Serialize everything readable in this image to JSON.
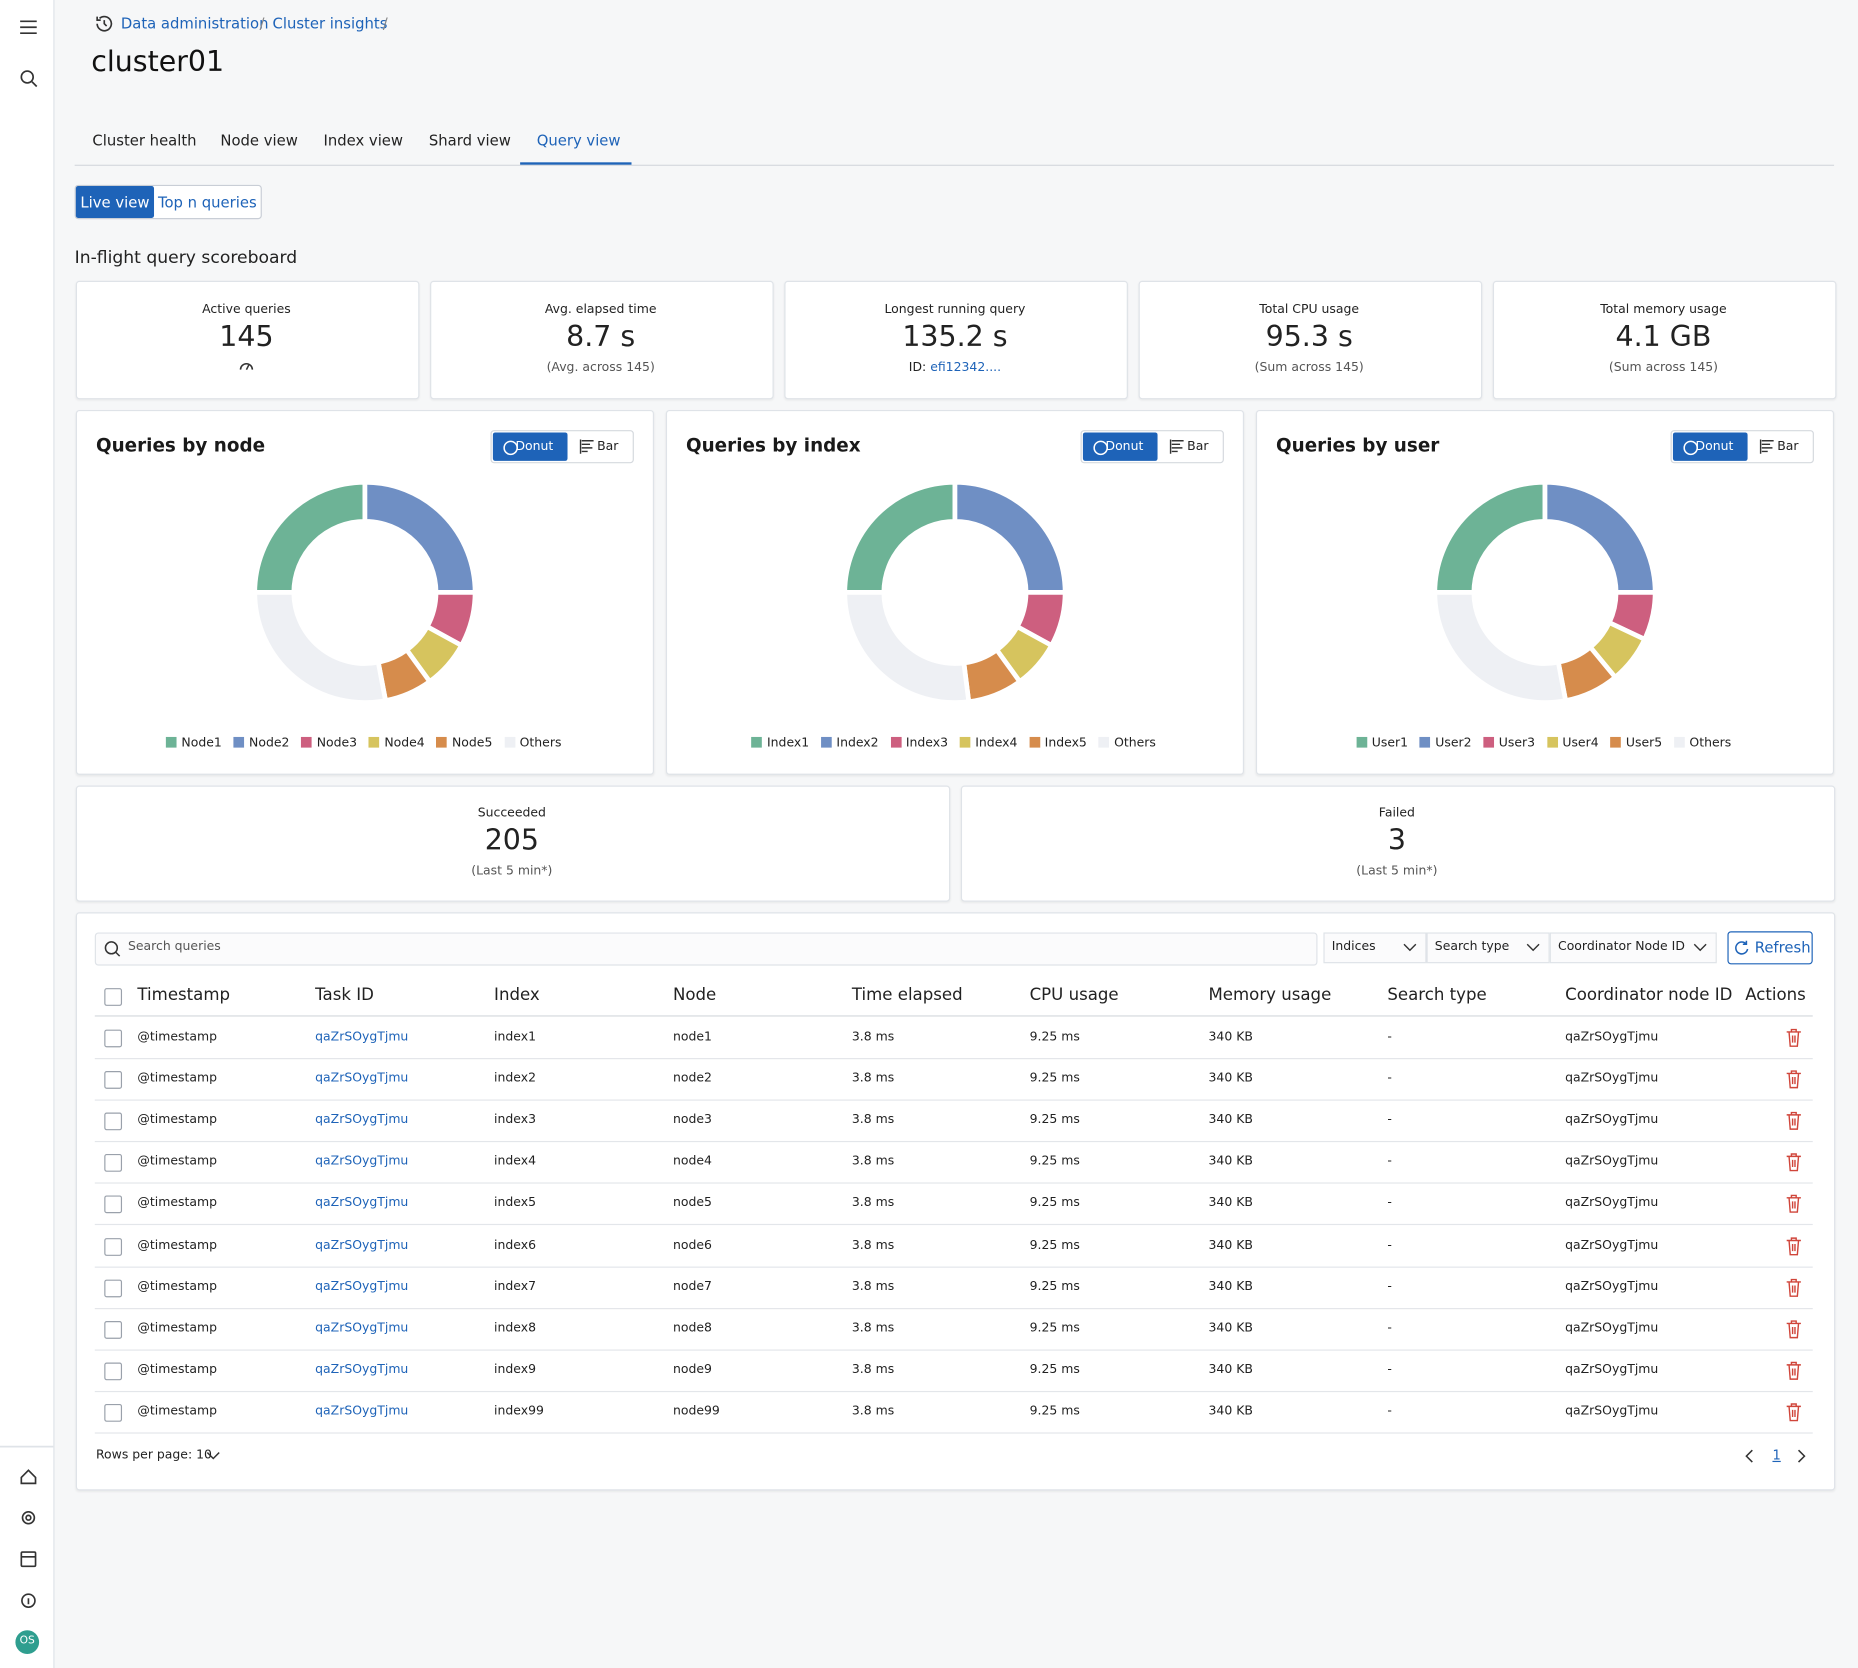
{
  "sidebar": {
    "avatar": "OS"
  },
  "breadcrumb": [
    "Data administration",
    "Cluster insights"
  ],
  "breadcrumb_separator": "/",
  "title": "cluster01",
  "tabs": [
    "Cluster health",
    "Node view",
    "Index view",
    "Shard view",
    "Query view"
  ],
  "view_toggle": [
    "Live view",
    "Top n queries"
  ],
  "scoreboard": {
    "heading": "In-flight query scoreboard",
    "cards": [
      {
        "label": "Active queries",
        "value": "145"
      },
      {
        "label": "Avg. elapsed time",
        "value": "8.7 s",
        "note": "(Avg. across 145)"
      },
      {
        "label": "Longest running query",
        "value": "135.2 s",
        "id_label": "ID:",
        "id": "efi12342...."
      },
      {
        "label": "Total CPU usage",
        "value": "95.3 s",
        "note": "(Sum across 145)"
      },
      {
        "label": "Total memory usage",
        "value": "4.1 GB",
        "note": "(Sum across 145)"
      }
    ]
  },
  "chart_toggle": [
    "Donut",
    "Bar"
  ],
  "chart_data": [
    {
      "type": "donut",
      "title": "Queries by node",
      "categories": [
        "Node1",
        "Node2",
        "Node3",
        "Node4",
        "Node5",
        "Others"
      ],
      "values": [
        25,
        25,
        8,
        7,
        7,
        28
      ],
      "colors": [
        "#6db396",
        "#6f8fc4",
        "#cd5f7f",
        "#d6c45e",
        "#d68c4c",
        "#eef0f4"
      ]
    },
    {
      "type": "donut",
      "title": "Queries by index",
      "categories": [
        "Index1",
        "Index2",
        "Index3",
        "Index4",
        "Index5",
        "Others"
      ],
      "values": [
        25,
        25,
        8,
        7,
        8,
        27
      ],
      "colors": [
        "#6db396",
        "#6f8fc4",
        "#cd5f7f",
        "#d6c45e",
        "#d68c4c",
        "#eef0f4"
      ]
    },
    {
      "type": "donut",
      "title": "Queries by user",
      "categories": [
        "User1",
        "User2",
        "User3",
        "User4",
        "User5",
        "Others"
      ],
      "values": [
        25,
        25,
        7,
        7,
        8,
        28
      ],
      "colors": [
        "#6db396",
        "#6f8fc4",
        "#cd5f7f",
        "#d6c45e",
        "#d68c4c",
        "#eef0f4"
      ]
    }
  ],
  "outcomes": [
    {
      "label": "Succeeded",
      "value": "205",
      "note": "(Last 5 min*)"
    },
    {
      "label": "Failed",
      "value": "3",
      "note": "(Last 5 min*)"
    }
  ],
  "table": {
    "search_placeholder": "Search queries",
    "filters": [
      "Indices",
      "Search type",
      "Coordinator Node ID"
    ],
    "refresh": "Refresh",
    "columns": [
      "Timestamp",
      "Task ID",
      "Index",
      "Node",
      "Time elapsed",
      "CPU usage",
      "Memory usage",
      "Search type",
      "Coordinator node ID",
      "Actions"
    ],
    "rows": [
      [
        "@timestamp",
        "qaZrSOygTjmu",
        "index1",
        "node1",
        "3.8 ms",
        "9.25 ms",
        "340 KB",
        "-",
        "qaZrSOygTjmu"
      ],
      [
        "@timestamp",
        "qaZrSOygTjmu",
        "index2",
        "node2",
        "3.8 ms",
        "9.25 ms",
        "340 KB",
        "-",
        "qaZrSOygTjmu"
      ],
      [
        "@timestamp",
        "qaZrSOygTjmu",
        "index3",
        "node3",
        "3.8 ms",
        "9.25 ms",
        "340 KB",
        "-",
        "qaZrSOygTjmu"
      ],
      [
        "@timestamp",
        "qaZrSOygTjmu",
        "index4",
        "node4",
        "3.8 ms",
        "9.25 ms",
        "340 KB",
        "-",
        "qaZrSOygTjmu"
      ],
      [
        "@timestamp",
        "qaZrSOygTjmu",
        "index5",
        "node5",
        "3.8 ms",
        "9.25 ms",
        "340 KB",
        "-",
        "qaZrSOygTjmu"
      ],
      [
        "@timestamp",
        "qaZrSOygTjmu",
        "index6",
        "node6",
        "3.8 ms",
        "9.25 ms",
        "340 KB",
        "-",
        "qaZrSOygTjmu"
      ],
      [
        "@timestamp",
        "qaZrSOygTjmu",
        "index7",
        "node7",
        "3.8 ms",
        "9.25 ms",
        "340 KB",
        "-",
        "qaZrSOygTjmu"
      ],
      [
        "@timestamp",
        "qaZrSOygTjmu",
        "index8",
        "node8",
        "3.8 ms",
        "9.25 ms",
        "340 KB",
        "-",
        "qaZrSOygTjmu"
      ],
      [
        "@timestamp",
        "qaZrSOygTjmu",
        "index9",
        "node9",
        "3.8 ms",
        "9.25 ms",
        "340 KB",
        "-",
        "qaZrSOygTjmu"
      ],
      [
        "@timestamp",
        "qaZrSOygTjmu",
        "index99",
        "node99",
        "3.8 ms",
        "9.25 ms",
        "340 KB",
        "-",
        "qaZrSOygTjmu"
      ]
    ],
    "rows_per_page": "Rows per page: 10",
    "page": "1"
  }
}
